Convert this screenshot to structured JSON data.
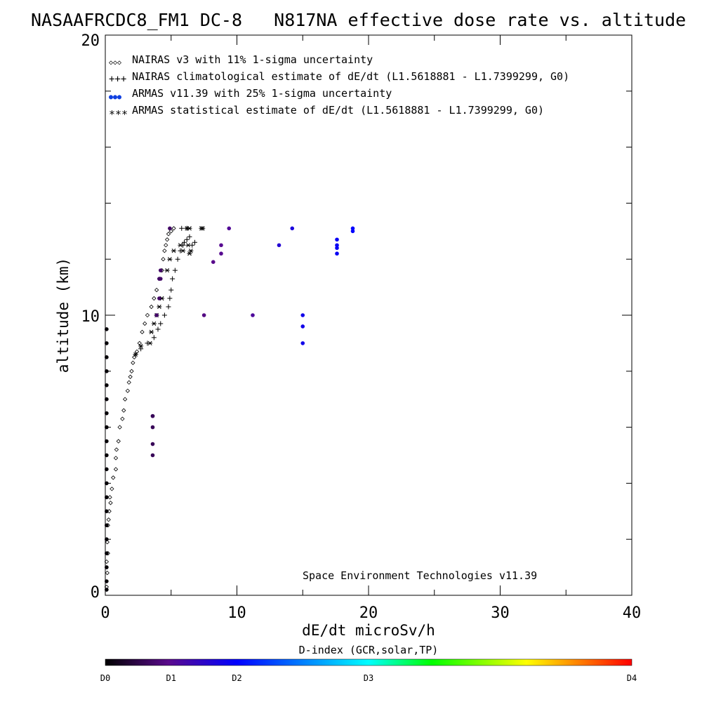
{
  "chart_data": {
    "type": "scatter",
    "title": "NASAAFRCDC8_FM1 DC-8   N817NA effective dose rate vs. altitude",
    "xlabel": "dE/dt microSv/h",
    "ylabel": "altitude (km)",
    "xlim": [
      0,
      40
    ],
    "ylim": [
      0,
      20
    ],
    "x_ticks": [
      "0",
      "10",
      "20",
      "30",
      "40"
    ],
    "y_ticks": [
      "0",
      "10",
      "20"
    ],
    "grid": false,
    "legend_position": "top-left",
    "legend": [
      {
        "marker": "diamond",
        "symbol": "◇◇◇",
        "label": "NAIRAS v3 with 11% 1-sigma uncertainty"
      },
      {
        "marker": "plus",
        "symbol": "+++",
        "label": "NAIRAS climatological estimate of dE/dt (L1.5618881 - L1.7399299, G0)"
      },
      {
        "marker": "dot",
        "symbol": "●●●",
        "label": "ARMAS v11.39 with 25% 1-sigma uncertainty"
      },
      {
        "marker": "asterisk",
        "symbol": "***",
        "label": "ARMAS statistical estimate of dE/dt (L1.5618881 - L1.7399299, G0)"
      }
    ],
    "annotation": "Space Environment Technologies v11.39",
    "series": [
      {
        "name": "NAIRAS v3 with 11% 1-sigma uncertainty",
        "marker": "diamond",
        "x": [
          0.1,
          0.15,
          0.1,
          0.2,
          0.15,
          0.2,
          0.25,
          0.3,
          0.4,
          0.35,
          0.5,
          0.6,
          0.8,
          0.8,
          0.85,
          1.0,
          1.1,
          1.3,
          1.4,
          1.5,
          1.7,
          1.8,
          1.9,
          2.0,
          2.1,
          2.2,
          2.4,
          2.6,
          2.8,
          3.0,
          3.2,
          3.5,
          3.7,
          3.9,
          4.1,
          4.3,
          4.4,
          4.5,
          4.6,
          4.7,
          4.8,
          5.0,
          5.2
        ],
        "y": [
          0.3,
          0.8,
          1.2,
          1.5,
          1.9,
          2.5,
          2.7,
          3.0,
          3.3,
          3.5,
          3.8,
          4.2,
          4.5,
          4.9,
          5.2,
          5.5,
          6.0,
          6.3,
          6.6,
          7.0,
          7.3,
          7.6,
          7.8,
          8.0,
          8.3,
          8.5,
          8.7,
          9.0,
          9.4,
          9.7,
          10.0,
          10.3,
          10.6,
          10.9,
          11.3,
          11.6,
          12.0,
          12.3,
          12.5,
          12.7,
          12.9,
          13.0,
          13.1
        ]
      },
      {
        "name": "NAIRAS climatological estimate of dE/dt",
        "marker": "plus",
        "x": [
          2.3,
          2.7,
          3.2,
          3.7,
          4.0,
          4.2,
          4.5,
          4.8,
          4.9,
          5.0,
          5.1,
          5.3,
          5.5,
          5.7,
          5.9,
          6.0,
          6.2,
          6.4,
          6.6,
          6.8,
          5.8,
          6.2
        ],
        "y": [
          8.6,
          8.8,
          9.0,
          9.2,
          9.5,
          9.7,
          10.0,
          10.3,
          10.6,
          10.9,
          11.3,
          11.6,
          12.0,
          12.3,
          12.5,
          12.6,
          12.7,
          12.8,
          12.5,
          12.6,
          13.1,
          13.1
        ]
      },
      {
        "name": "ARMAS statistical estimate of dE/dt",
        "marker": "asterisk",
        "x": [
          2.3,
          2.7,
          3.4,
          3.5,
          3.7,
          3.9,
          4.1,
          4.3,
          4.7,
          4.9,
          5.2,
          5.7,
          5.9,
          6.3,
          6.5,
          6.4,
          7.3,
          7.4,
          6.2,
          6.4
        ],
        "y": [
          8.6,
          8.9,
          9.0,
          9.4,
          9.7,
          10.0,
          10.3,
          10.6,
          11.6,
          12.0,
          12.3,
          12.5,
          12.3,
          12.5,
          12.3,
          12.2,
          13.1,
          13.1,
          13.1,
          13.1
        ]
      },
      {
        "name": "ARMAS v11.39 with 25% 1-sigma uncertainty",
        "marker": "dot",
        "x": [
          0.1,
          0.1,
          0.1,
          0.1,
          0.1,
          0.1,
          0.1,
          0.1,
          0.1,
          0.1,
          0.1,
          0.1,
          0.1,
          0.1,
          0.1,
          0.1,
          0.1,
          0.1,
          0.1,
          0.1,
          3.6,
          3.6,
          3.6,
          3.6,
          3.6,
          3.9,
          4.1,
          4.1,
          4.2,
          4.2,
          4.9,
          7.5,
          8.2,
          8.8,
          8.8,
          9.4,
          11.2,
          13.2,
          14.2,
          15.0,
          15.0,
          15.0,
          17.6,
          17.6,
          17.6,
          17.6,
          18.8,
          18.8
        ],
        "y": [
          0.2,
          0.5,
          1.0,
          1.5,
          2.0,
          2.5,
          3.0,
          3.5,
          4.0,
          4.5,
          5.0,
          5.5,
          6.0,
          6.5,
          7.0,
          7.5,
          8.0,
          8.5,
          9.0,
          9.5,
          5.0,
          5.4,
          6.0,
          6.4,
          6.4,
          10.0,
          10.6,
          11.3,
          11.3,
          11.6,
          13.1,
          10.0,
          11.9,
          12.2,
          12.5,
          13.1,
          10.0,
          12.5,
          13.1,
          9.0,
          9.6,
          10.0,
          12.2,
          12.4,
          12.5,
          12.7,
          13.0,
          13.1
        ],
        "d_index": [
          0.05,
          0.05,
          0.05,
          0.05,
          0.05,
          0.05,
          0.05,
          0.05,
          0.05,
          0.05,
          0.05,
          0.05,
          0.05,
          0.05,
          0.05,
          0.05,
          0.05,
          0.05,
          0.05,
          0.05,
          0.6,
          0.6,
          0.6,
          0.6,
          0.6,
          0.7,
          0.7,
          0.7,
          0.7,
          0.7,
          0.7,
          0.9,
          0.95,
          1.0,
          1.0,
          1.05,
          1.1,
          1.6,
          1.7,
          1.8,
          1.8,
          1.8,
          1.9,
          1.9,
          1.9,
          1.9,
          2.0,
          2.0
        ]
      }
    ],
    "colorbar": {
      "title": "D-index (GCR,solar,TP)",
      "labels": [
        "D0",
        "D1",
        "D2",
        "D3",
        "D4"
      ],
      "label_positions": [
        0,
        1,
        2,
        4,
        8
      ],
      "max": 8,
      "colors": [
        "#000000",
        "#5a0a8c",
        "#0000ff",
        "#00ffff",
        "#00ff00",
        "#ffff00",
        "#ff0000"
      ]
    }
  }
}
